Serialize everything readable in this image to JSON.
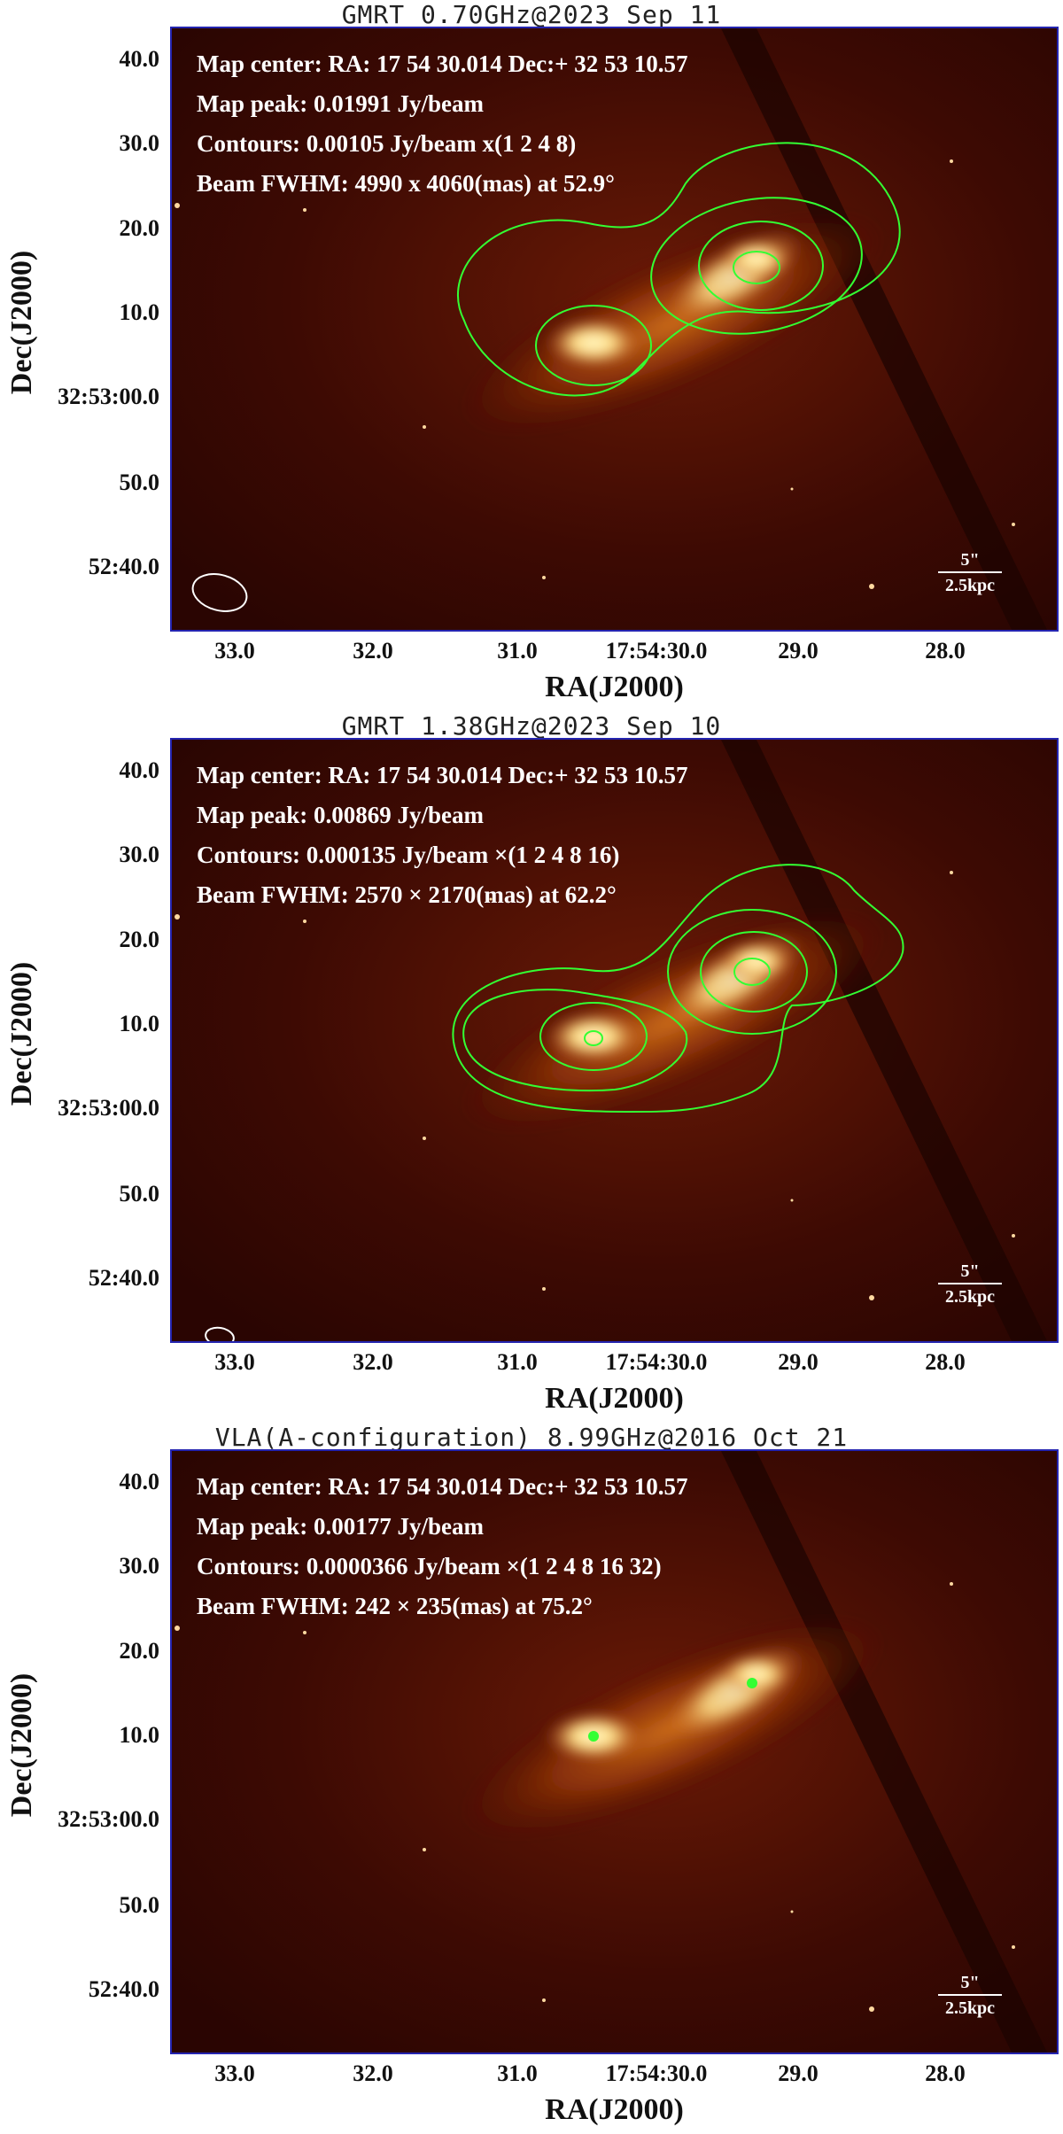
{
  "panels": [
    {
      "title": "GMRT 0.70GHz@2023 Sep 11",
      "info": [
        "Map center: RA: 17 54 30.014 Dec:+ 32 53 10.57",
        "Map peak: 0.01991 Jy/beam",
        "Contours: 0.00105 Jy/beam x(1 2 4 8)",
        "Beam FWHM: 4990 x 4060(mas) at 52.9°"
      ],
      "scale_top": "5\"",
      "scale_bottom": "2.5kpc"
    },
    {
      "title": "GMRT 1.38GHz@2023 Sep 10",
      "info": [
        "Map center: RA: 17 54 30.014  Dec:+ 32 53 10.57",
        "Map peak: 0.00869 Jy/beam",
        "Contours: 0.000135 Jy/beam ×(1 2 4 8 16)",
        "Beam FWHM: 2570 × 2170(mas) at 62.2°"
      ],
      "scale_top": "5\"",
      "scale_bottom": "2.5kpc"
    },
    {
      "title": "VLA(A-configuration) 8.99GHz@2016 Oct 21",
      "info": [
        "Map center: RA: 17 54 30.014 Dec:+ 32 53 10.57",
        "Map peak: 0.00177 Jy/beam",
        "Contours: 0.0000366 Jy/beam ×(1 2 4 8 16 32)",
        "Beam FWHM: 242 × 235(mas) at 75.2°"
      ],
      "scale_top": "5\"",
      "scale_bottom": "2.5kpc"
    }
  ],
  "axes": {
    "xlabel": "RA(J2000)",
    "ylabel": "Dec(J2000)",
    "yticks": [
      "40.0",
      "30.0",
      "20.0",
      "10.0",
      "32:53:00.0",
      "50.0",
      "52:40.0"
    ],
    "xticks": [
      "33.0",
      "32.0",
      "31.0",
      "17:54:30.0",
      "29.0",
      "28.0"
    ]
  },
  "colors": {
    "contour": "#33ff33",
    "frame": "#2424b0",
    "background": "#3a0802",
    "galaxy_core": "#ffe08a"
  }
}
